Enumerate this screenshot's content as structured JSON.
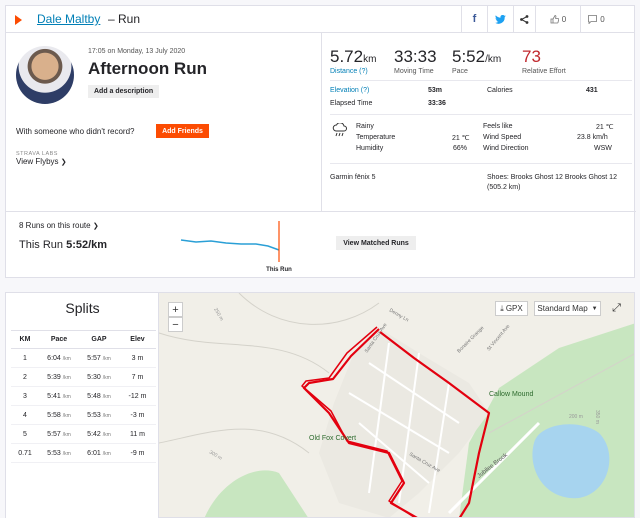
{
  "header": {
    "athlete": "Dale Maltby",
    "run_type": "– Run",
    "kudos": "0",
    "comments": "0"
  },
  "activity": {
    "datetime": "17:05 on Monday, 13 July 2020",
    "title": "Afternoon Run",
    "add_description": "Add a description",
    "with_someone": "With someone who didn't record?",
    "add_friends": "Add Friends",
    "labs": "STRAVA LABS",
    "flybys": "View Flybys"
  },
  "stats": {
    "distance": "5.72",
    "distance_unit": "km",
    "distance_label": "Distance (?)",
    "moving_time": "33:33",
    "moving_time_label": "Moving Time",
    "pace": "5:52",
    "pace_unit": "/km",
    "pace_label": "Pace",
    "effort": "73",
    "effort_label": "Relative Effort"
  },
  "details": {
    "elevation_label": "Elevation (?)",
    "elevation": "53m",
    "calories_label": "Calories",
    "calories": "431",
    "elapsed_label": "Elapsed Time",
    "elapsed": "33:36"
  },
  "weather": {
    "condition": "Rainy",
    "temp_label": "Temperature",
    "temp": "21 ℃",
    "humidity_label": "Humidity",
    "humidity": "66%",
    "feels_label": "Feels like",
    "feels": "21 ℃",
    "wind_speed_label": "Wind Speed",
    "wind_speed": "23.8 km/h",
    "wind_dir_label": "Wind Direction",
    "wind_dir": "WSW"
  },
  "gear": {
    "device": "Garmin fēnix 5",
    "shoes": "Shoes: Brooks Ghost 12 Brooks Ghost 12",
    "shoes_distance": "(505.2 km)"
  },
  "route": {
    "runs": "8 Runs on this route",
    "this_run_label": "This Run",
    "this_run_pace": "5:52/km",
    "marker": "This Run",
    "matched": "View Matched Runs"
  },
  "splits": {
    "title": "Splits",
    "headers": [
      "KM",
      "Pace",
      "GAP",
      "Elev"
    ],
    "rows": [
      {
        "km": "1",
        "pace": "6:04",
        "gap": "5:57",
        "elev": "3 m"
      },
      {
        "km": "2",
        "pace": "5:39",
        "gap": "5:30",
        "elev": "7 m"
      },
      {
        "km": "3",
        "pace": "5:41",
        "gap": "5:48",
        "elev": "-12 m"
      },
      {
        "km": "4",
        "pace": "5:58",
        "gap": "5:53",
        "elev": "-3 m"
      },
      {
        "km": "5",
        "pace": "5:57",
        "gap": "5:42",
        "elev": "11 m"
      },
      {
        "km": "0.71",
        "pace": "5:53",
        "gap": "6:01",
        "elev": "-9 m"
      }
    ],
    "unit": "/km"
  },
  "map": {
    "gpx": "GPX",
    "map_type": "Standard Map",
    "zoom_in": "+",
    "zoom_out": "−",
    "labels": {
      "callow": "Callow Mound",
      "old_fox": "Old Fox Covert",
      "jubilee": "Jubilee Brook",
      "denny": "Denny Ln",
      "santa1": "Santa Cruz Ave",
      "santa2": "Santa Cruz Ave",
      "bonaire": "Bonaire Grange",
      "st_vincent": "St Vincent Ave",
      "c250": "250 m",
      "c300": "300 m",
      "c200": "200 m",
      "c350": "350 m"
    }
  },
  "colors": {
    "accent": "#fc4c02",
    "link": "#007fb6",
    "effort": "#c0272d",
    "route": "#e3000f"
  }
}
